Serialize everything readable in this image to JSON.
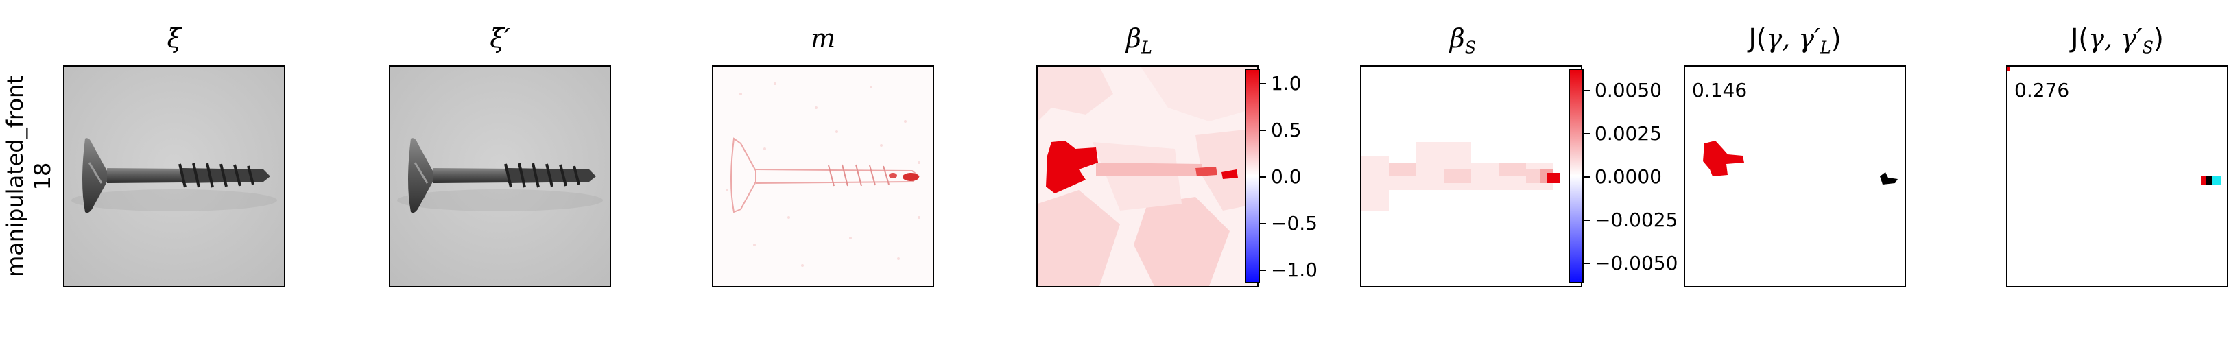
{
  "row_label": {
    "line1": "manipulated_front",
    "line2": "18"
  },
  "panels": [
    {
      "title": "ξ"
    },
    {
      "title": "ξ′"
    },
    {
      "title": "m"
    },
    {
      "title": "β",
      "sub": "L"
    },
    {
      "title": "β",
      "sub": "S"
    },
    {
      "title_prefix": "J(",
      "title_math": "γ, γ′",
      "sub": "L",
      "title_suffix": ")",
      "score": "0.146"
    },
    {
      "title_prefix": "J(",
      "title_math": "γ, γ′",
      "sub": "S",
      "title_suffix": ")",
      "score": "0.276"
    }
  ],
  "colorbar_L": {
    "colormap": "bwr",
    "range": [
      -1.2,
      1.2
    ],
    "ticks": [
      "1.0",
      "0.5",
      "0.0",
      "−0.5",
      "−1.0"
    ]
  },
  "colorbar_S": {
    "colormap": "bwr",
    "range": [
      -0.0062,
      0.0062
    ],
    "ticks": [
      "0.0050",
      "0.0025",
      "0.0000",
      "−0.0025",
      "−0.0050"
    ]
  },
  "colors": {
    "positive": "#e8000b",
    "negative": "#0a0aff",
    "overlay_black": "#000000",
    "overlay_cyan": "#19e8f0"
  }
}
